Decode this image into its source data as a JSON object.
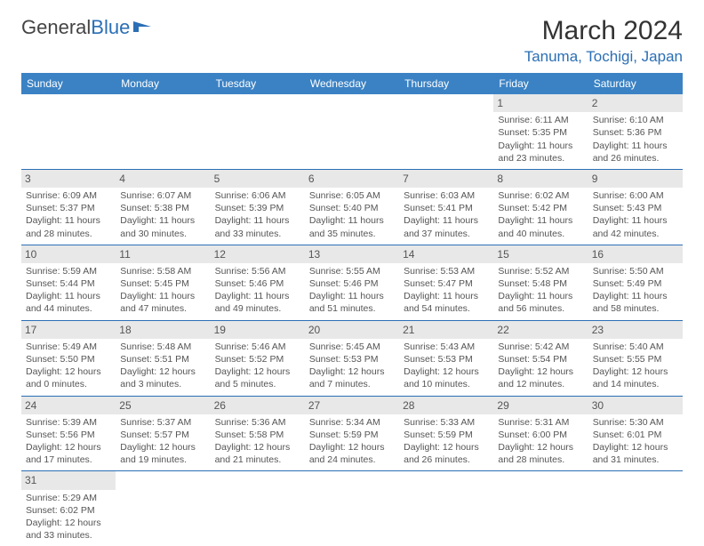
{
  "logo": {
    "text1": "General",
    "text2": "Blue"
  },
  "header": {
    "title": "March 2024",
    "location": "Tanuma, Tochigi, Japan"
  },
  "weekdays": [
    "Sunday",
    "Monday",
    "Tuesday",
    "Wednesday",
    "Thursday",
    "Friday",
    "Saturday"
  ],
  "colors": {
    "header_bg": "#3b82c4",
    "accent": "#2b6fb5",
    "daynum_bg": "#e8e8e8",
    "text": "#555"
  },
  "layout": {
    "first_weekday_index": 5,
    "days_in_month": 31
  },
  "days": {
    "1": {
      "sunrise": "6:11 AM",
      "sunset": "5:35 PM",
      "daylight": "11 hours and 23 minutes."
    },
    "2": {
      "sunrise": "6:10 AM",
      "sunset": "5:36 PM",
      "daylight": "11 hours and 26 minutes."
    },
    "3": {
      "sunrise": "6:09 AM",
      "sunset": "5:37 PM",
      "daylight": "11 hours and 28 minutes."
    },
    "4": {
      "sunrise": "6:07 AM",
      "sunset": "5:38 PM",
      "daylight": "11 hours and 30 minutes."
    },
    "5": {
      "sunrise": "6:06 AM",
      "sunset": "5:39 PM",
      "daylight": "11 hours and 33 minutes."
    },
    "6": {
      "sunrise": "6:05 AM",
      "sunset": "5:40 PM",
      "daylight": "11 hours and 35 minutes."
    },
    "7": {
      "sunrise": "6:03 AM",
      "sunset": "5:41 PM",
      "daylight": "11 hours and 37 minutes."
    },
    "8": {
      "sunrise": "6:02 AM",
      "sunset": "5:42 PM",
      "daylight": "11 hours and 40 minutes."
    },
    "9": {
      "sunrise": "6:00 AM",
      "sunset": "5:43 PM",
      "daylight": "11 hours and 42 minutes."
    },
    "10": {
      "sunrise": "5:59 AM",
      "sunset": "5:44 PM",
      "daylight": "11 hours and 44 minutes."
    },
    "11": {
      "sunrise": "5:58 AM",
      "sunset": "5:45 PM",
      "daylight": "11 hours and 47 minutes."
    },
    "12": {
      "sunrise": "5:56 AM",
      "sunset": "5:46 PM",
      "daylight": "11 hours and 49 minutes."
    },
    "13": {
      "sunrise": "5:55 AM",
      "sunset": "5:46 PM",
      "daylight": "11 hours and 51 minutes."
    },
    "14": {
      "sunrise": "5:53 AM",
      "sunset": "5:47 PM",
      "daylight": "11 hours and 54 minutes."
    },
    "15": {
      "sunrise": "5:52 AM",
      "sunset": "5:48 PM",
      "daylight": "11 hours and 56 minutes."
    },
    "16": {
      "sunrise": "5:50 AM",
      "sunset": "5:49 PM",
      "daylight": "11 hours and 58 minutes."
    },
    "17": {
      "sunrise": "5:49 AM",
      "sunset": "5:50 PM",
      "daylight": "12 hours and 0 minutes."
    },
    "18": {
      "sunrise": "5:48 AM",
      "sunset": "5:51 PM",
      "daylight": "12 hours and 3 minutes."
    },
    "19": {
      "sunrise": "5:46 AM",
      "sunset": "5:52 PM",
      "daylight": "12 hours and 5 minutes."
    },
    "20": {
      "sunrise": "5:45 AM",
      "sunset": "5:53 PM",
      "daylight": "12 hours and 7 minutes."
    },
    "21": {
      "sunrise": "5:43 AM",
      "sunset": "5:53 PM",
      "daylight": "12 hours and 10 minutes."
    },
    "22": {
      "sunrise": "5:42 AM",
      "sunset": "5:54 PM",
      "daylight": "12 hours and 12 minutes."
    },
    "23": {
      "sunrise": "5:40 AM",
      "sunset": "5:55 PM",
      "daylight": "12 hours and 14 minutes."
    },
    "24": {
      "sunrise": "5:39 AM",
      "sunset": "5:56 PM",
      "daylight": "12 hours and 17 minutes."
    },
    "25": {
      "sunrise": "5:37 AM",
      "sunset": "5:57 PM",
      "daylight": "12 hours and 19 minutes."
    },
    "26": {
      "sunrise": "5:36 AM",
      "sunset": "5:58 PM",
      "daylight": "12 hours and 21 minutes."
    },
    "27": {
      "sunrise": "5:34 AM",
      "sunset": "5:59 PM",
      "daylight": "12 hours and 24 minutes."
    },
    "28": {
      "sunrise": "5:33 AM",
      "sunset": "5:59 PM",
      "daylight": "12 hours and 26 minutes."
    },
    "29": {
      "sunrise": "5:31 AM",
      "sunset": "6:00 PM",
      "daylight": "12 hours and 28 minutes."
    },
    "30": {
      "sunrise": "5:30 AM",
      "sunset": "6:01 PM",
      "daylight": "12 hours and 31 minutes."
    },
    "31": {
      "sunrise": "5:29 AM",
      "sunset": "6:02 PM",
      "daylight": "12 hours and 33 minutes."
    }
  },
  "labels": {
    "sunrise": "Sunrise: ",
    "sunset": "Sunset: ",
    "daylight": "Daylight: "
  }
}
